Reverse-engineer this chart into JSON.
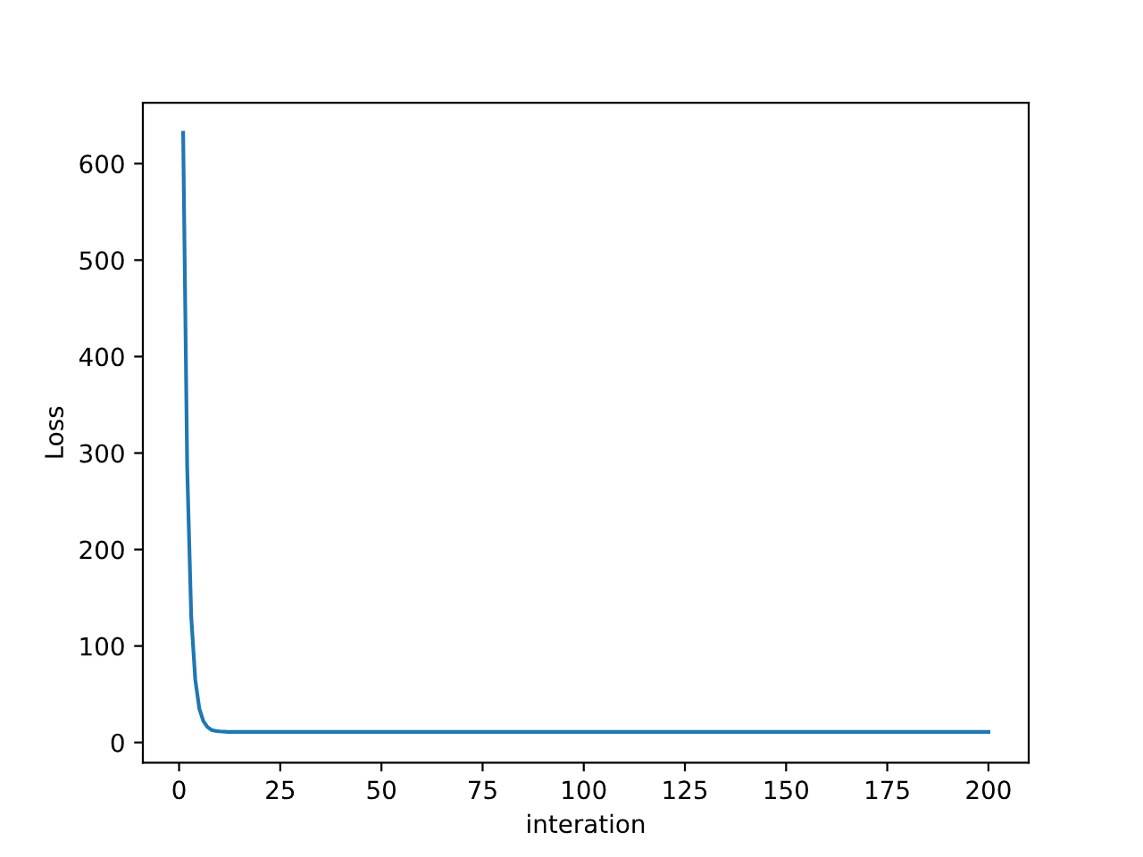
{
  "chart_data": {
    "type": "line",
    "xlabel": "interation",
    "ylabel": "Loss",
    "x": [
      1,
      2,
      3,
      4,
      5,
      6,
      7,
      8,
      9,
      10,
      12,
      15,
      20,
      50,
      100,
      150,
      200
    ],
    "series": [
      {
        "color": "#1f77b4",
        "values": [
          632,
          285,
          130,
          65,
          35,
          22,
          16,
          13,
          12,
          11.5,
          11,
          11,
          11,
          11,
          11,
          11,
          11
        ]
      }
    ],
    "xlim": [
      -8.95,
      209.95
    ],
    "xticks": [
      0,
      25,
      50,
      75,
      100,
      125,
      150,
      175,
      200
    ],
    "ylim": [
      -21,
      663
    ],
    "yticks": [
      0,
      100,
      200,
      300,
      400,
      500,
      600
    ],
    "grid": false,
    "legend": false,
    "marker": "none",
    "line_style": "solid"
  }
}
